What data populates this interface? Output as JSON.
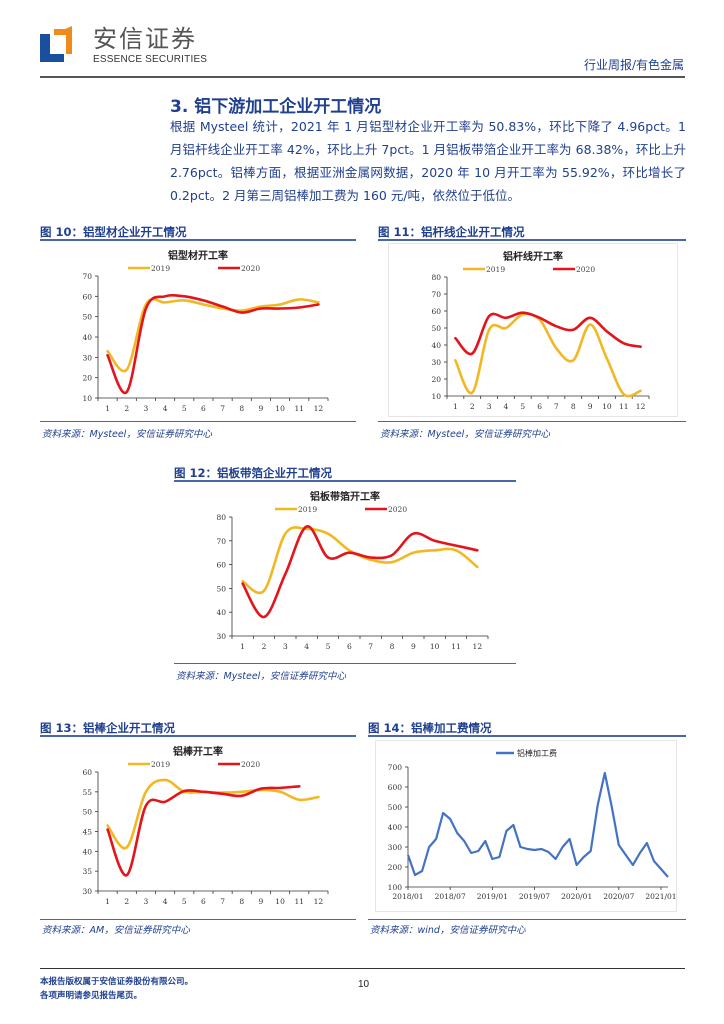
{
  "header": {
    "brand_cn": "安信证券",
    "brand_en": "ESSENCE SECURITIES",
    "category": "行业周报/有色金属",
    "logo_colors": {
      "blue": "#1a4fa0",
      "orange": "#f08a1c"
    }
  },
  "section": {
    "title": "3. 铝下游加工企业开工情况",
    "body": "根据 Mysteel 统计，2021 年 1 月铝型材企业开工率为 50.83%，环比下降了 4.96pct。1 月铝杆线企业开工率 42%，环比上升 7pct。1 月铝板带箔企业开工率为 68.38%，环比上升 2.76pct。铝棒方面，根据亚洲金属网数据，2020 年 10 月开工率为 55.92%，环比增长了 0.2pct。2 月第三周铝棒加工费为 160 元/吨，依然位于低位。"
  },
  "figures": {
    "fig10": {
      "label": "图 10：铝型材企业开工情况",
      "source": "资料来源：Mysteel，安信证券研究中心"
    },
    "fig11": {
      "label": "图 11：铝杆线企业开工情况",
      "source": "资料来源：Mysteel，安信证券研究中心"
    },
    "fig12": {
      "label": "图 12：铝板带箔企业开工情况",
      "source": "资料来源：Mysteel，安信证券研究中心"
    },
    "fig13": {
      "label": "图 13：铝棒企业开工情况",
      "source": "资料来源：AM，安信证券研究中心"
    },
    "fig14": {
      "label": "图 14：铝棒加工费情况",
      "source": "资料来源：wind，安信证券研究中心"
    }
  },
  "colors": {
    "series_2019": "#f2b824",
    "series_2020": "#e3141b",
    "fee_line": "#4472c4",
    "text_blue": "#1f3f8f"
  },
  "footer": {
    "line1": "本报告版权属于安信证券股份有限公司。",
    "line2": "各项声明请参见报告尾页。",
    "page": "10"
  },
  "chart_data": [
    {
      "id": "fig10",
      "type": "line",
      "title": "铝型材开工率",
      "categories": [
        "1",
        "2",
        "3",
        "4",
        "5",
        "6",
        "7",
        "8",
        "9",
        "10",
        "11",
        "12"
      ],
      "series": [
        {
          "name": "2019",
          "values": [
            33,
            24,
            56,
            57,
            58,
            56,
            54,
            53,
            55,
            56,
            58.5,
            57
          ]
        },
        {
          "name": "2020",
          "values": [
            31,
            13,
            54,
            60,
            60,
            58,
            55,
            52,
            54,
            54,
            54.5,
            56
          ]
        }
      ],
      "ylim": [
        10,
        70
      ],
      "yticks": [
        10,
        20,
        30,
        40,
        50,
        60,
        70
      ],
      "legend_position": "top",
      "grid": false
    },
    {
      "id": "fig11",
      "type": "line",
      "title": "铝杆线开工率",
      "categories": [
        "1",
        "2",
        "3",
        "4",
        "5",
        "6",
        "7",
        "8",
        "9",
        "10",
        "11",
        "12"
      ],
      "series": [
        {
          "name": "2019",
          "values": [
            31,
            12,
            49,
            50,
            58,
            55,
            38,
            31,
            52,
            32,
            11,
            13
          ]
        },
        {
          "name": "2020",
          "values": [
            44,
            35,
            57,
            56,
            59,
            56,
            51,
            49,
            56,
            48,
            41,
            39
          ]
        }
      ],
      "ylim": [
        10,
        80
      ],
      "yticks": [
        10,
        20,
        30,
        40,
        50,
        60,
        70,
        80
      ],
      "legend_position": "top",
      "grid": false
    },
    {
      "id": "fig12",
      "type": "line",
      "title": "铝板带箔开工率",
      "categories": [
        "1",
        "2",
        "3",
        "4",
        "5",
        "6",
        "7",
        "8",
        "9",
        "10",
        "11",
        "12"
      ],
      "series": [
        {
          "name": "2019",
          "values": [
            53,
            49,
            73,
            75,
            73,
            66,
            62,
            61,
            65,
            66,
            66,
            59
          ]
        },
        {
          "name": "2020",
          "values": [
            52,
            38,
            56,
            76,
            63,
            65,
            63,
            64,
            73,
            70,
            68,
            66
          ]
        }
      ],
      "ylim": [
        30,
        80
      ],
      "yticks": [
        30,
        40,
        50,
        60,
        70,
        80
      ],
      "legend_position": "top",
      "grid": false
    },
    {
      "id": "fig13",
      "type": "line",
      "title": "铝棒开工率",
      "categories": [
        "1",
        "2",
        "3",
        "4",
        "5",
        "6",
        "7",
        "8",
        "9",
        "10",
        "11",
        "12"
      ],
      "series": [
        {
          "name": "2019",
          "values": [
            46.5,
            41,
            55,
            58,
            55,
            55,
            54.8,
            55,
            55.5,
            55,
            53,
            53.7
          ]
        },
        {
          "name": "2020",
          "values": [
            45.5,
            34,
            51.5,
            52.5,
            55.2,
            55,
            54.5,
            54,
            55.8,
            56,
            56.4,
            null
          ]
        }
      ],
      "ylim": [
        30,
        60
      ],
      "yticks": [
        30,
        35,
        40,
        45,
        50,
        55,
        60
      ],
      "legend_position": "top",
      "grid": false
    },
    {
      "id": "fig14",
      "type": "line",
      "title": "",
      "legend": [
        "铝棒加工费"
      ],
      "x": [
        "2018/01",
        "2018/02",
        "2018/03",
        "2018/04",
        "2018/05",
        "2018/06",
        "2018/07",
        "2018/08",
        "2018/09",
        "2018/10",
        "2018/11",
        "2018/12",
        "2019/01",
        "2019/02",
        "2019/03",
        "2019/04",
        "2019/05",
        "2019/06",
        "2019/07",
        "2019/08",
        "2019/09",
        "2019/10",
        "2019/11",
        "2019/12",
        "2020/01",
        "2020/02",
        "2020/03",
        "2020/04",
        "2020/05",
        "2020/06",
        "2020/07",
        "2020/08",
        "2020/09",
        "2020/10",
        "2020/11",
        "2020/12",
        "2021/01",
        "2021/02"
      ],
      "series": [
        {
          "name": "铝棒加工费",
          "values": [
            260,
            160,
            180,
            300,
            340,
            470,
            440,
            370,
            330,
            270,
            280,
            330,
            240,
            250,
            380,
            410,
            300,
            290,
            285,
            290,
            275,
            240,
            300,
            340,
            210,
            250,
            280,
            510,
            670,
            500,
            310,
            260,
            210,
            270,
            320,
            230,
            190,
            150
          ]
        }
      ],
      "xticks": [
        "2018/01",
        "2018/07",
        "2019/01",
        "2019/07",
        "2020/01",
        "2020/07",
        "2021/01"
      ],
      "ylim": [
        100,
        700
      ],
      "yticks": [
        100,
        200,
        300,
        400,
        500,
        600,
        700
      ],
      "legend_position": "top",
      "grid": false
    }
  ]
}
